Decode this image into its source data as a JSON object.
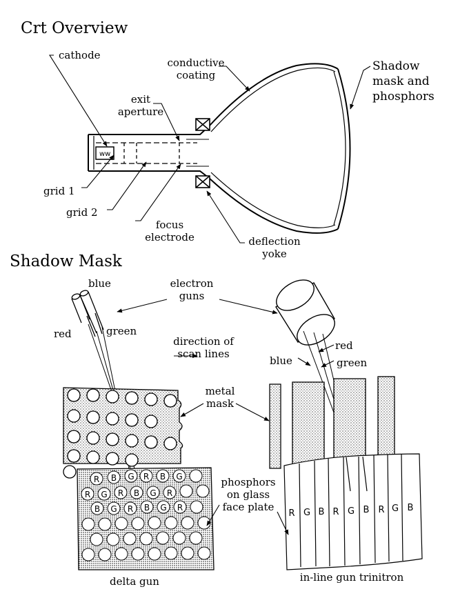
{
  "crt_overview": {
    "title": "Crt Overview",
    "labels": {
      "cathode": "cathode",
      "conductive_coating_1": "conductive",
      "conductive_coating_2": "coating",
      "shadow_mask_1": "Shadow",
      "shadow_mask_2": "mask and",
      "shadow_mask_3": "phosphors",
      "exit_aperture_1": "exit",
      "exit_aperture_2": "aperture",
      "grid1": "grid 1",
      "grid2": "grid 2",
      "focus_1": "focus",
      "focus_2": "electrode",
      "deflection_1": "deflection",
      "deflection_2": "yoke"
    }
  },
  "shadow_mask": {
    "title": "Shadow Mask",
    "labels": {
      "blue_left": "blue",
      "red_left": "red",
      "green_left": "green",
      "electron_1": "electron",
      "electron_2": "guns",
      "direction_1": "direction of",
      "direction_2": "scan lines",
      "red_right": "red",
      "blue_right": "blue",
      "green_right": "green",
      "metal_1": "metal",
      "metal_2": "mask",
      "phosphors_1": "phosphors",
      "phosphors_2": "on glass",
      "phosphors_3": "face plate",
      "delta_gun": "delta gun",
      "inline_gun": "in-line gun trinitron"
    },
    "phosphor_dot_letters": [
      "R",
      "B",
      "G",
      "R",
      "B",
      "G",
      "R",
      "G",
      "R",
      "B",
      "G",
      "R",
      "B",
      "G",
      "R",
      "B",
      "G",
      "R"
    ],
    "trinitron_strip_letters": [
      "R",
      "G",
      "B",
      "R",
      "G",
      "B",
      "R",
      "G",
      "B"
    ]
  }
}
